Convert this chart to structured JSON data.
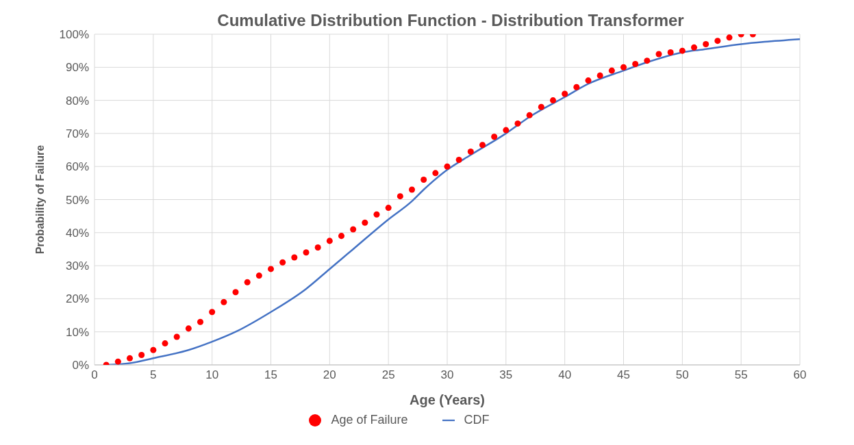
{
  "chart_data": {
    "type": "scatter",
    "title": "Cumulative Distribution Function - Distribution Transformer",
    "xlabel": "Age (Years)",
    "ylabel": "Probability of Failure",
    "xlim": [
      0,
      60
    ],
    "xticks": [
      0,
      5,
      10,
      15,
      20,
      25,
      30,
      35,
      40,
      45,
      50,
      55,
      60
    ],
    "ylim": [
      0,
      100
    ],
    "yticks": [
      {
        "value": 0,
        "label": "0%"
      },
      {
        "value": 10,
        "label": "10%"
      },
      {
        "value": 20,
        "label": "20%"
      },
      {
        "value": 30,
        "label": "30%"
      },
      {
        "value": 40,
        "label": "40%"
      },
      {
        "value": 50,
        "label": "50%"
      },
      {
        "value": 60,
        "label": "60%"
      },
      {
        "value": 70,
        "label": "70%"
      },
      {
        "value": 80,
        "label": "80%"
      },
      {
        "value": 90,
        "label": "90%"
      },
      {
        "value": 100,
        "label": "100%"
      }
    ],
    "grid": true,
    "legend": "bottom",
    "series": [
      {
        "name": "Age of Failure",
        "type": "scatter",
        "color": "#ff0000",
        "marker": "circle",
        "x": [
          1,
          2,
          3,
          4,
          5,
          6,
          7,
          8,
          9,
          10,
          11,
          12,
          13,
          14,
          15,
          16,
          17,
          18,
          19,
          20,
          21,
          22,
          23,
          24,
          25,
          26,
          27,
          28,
          29,
          30,
          31,
          32,
          33,
          34,
          35,
          36,
          37,
          38,
          39,
          40,
          41,
          42,
          43,
          44,
          45,
          46,
          47,
          48,
          49,
          50,
          51,
          52,
          53,
          54,
          55,
          56
        ],
        "values": [
          0,
          1,
          2,
          3,
          4.5,
          6.5,
          8.5,
          11,
          13,
          16,
          19,
          22,
          25,
          27,
          29,
          31,
          32.5,
          34,
          35.5,
          37.5,
          39,
          41,
          43,
          45.5,
          47.5,
          51,
          53,
          56,
          58,
          60,
          62,
          64.5,
          66.5,
          69,
          71,
          73,
          75.5,
          78,
          80,
          82,
          84,
          86,
          87.5,
          89,
          90,
          91,
          92,
          94,
          94.5,
          95,
          96,
          97,
          98,
          99,
          100,
          100
        ]
      },
      {
        "name": "CDF",
        "type": "line",
        "color": "#4472c4",
        "marker": "none",
        "line_style": "solid",
        "x": [
          1,
          3,
          5,
          8,
          10,
          12,
          15,
          18,
          20,
          22,
          25,
          27,
          28,
          30,
          32,
          35,
          37,
          40,
          42,
          45,
          47,
          50,
          52,
          55,
          57,
          60
        ],
        "values": [
          0,
          0.5,
          2,
          4.5,
          7,
          10,
          16,
          23,
          29,
          35,
          44,
          49.5,
          53,
          59,
          63.5,
          70,
          75,
          81,
          85,
          89,
          91.5,
          94.5,
          95.5,
          97,
          97.7,
          98.5
        ]
      }
    ]
  }
}
